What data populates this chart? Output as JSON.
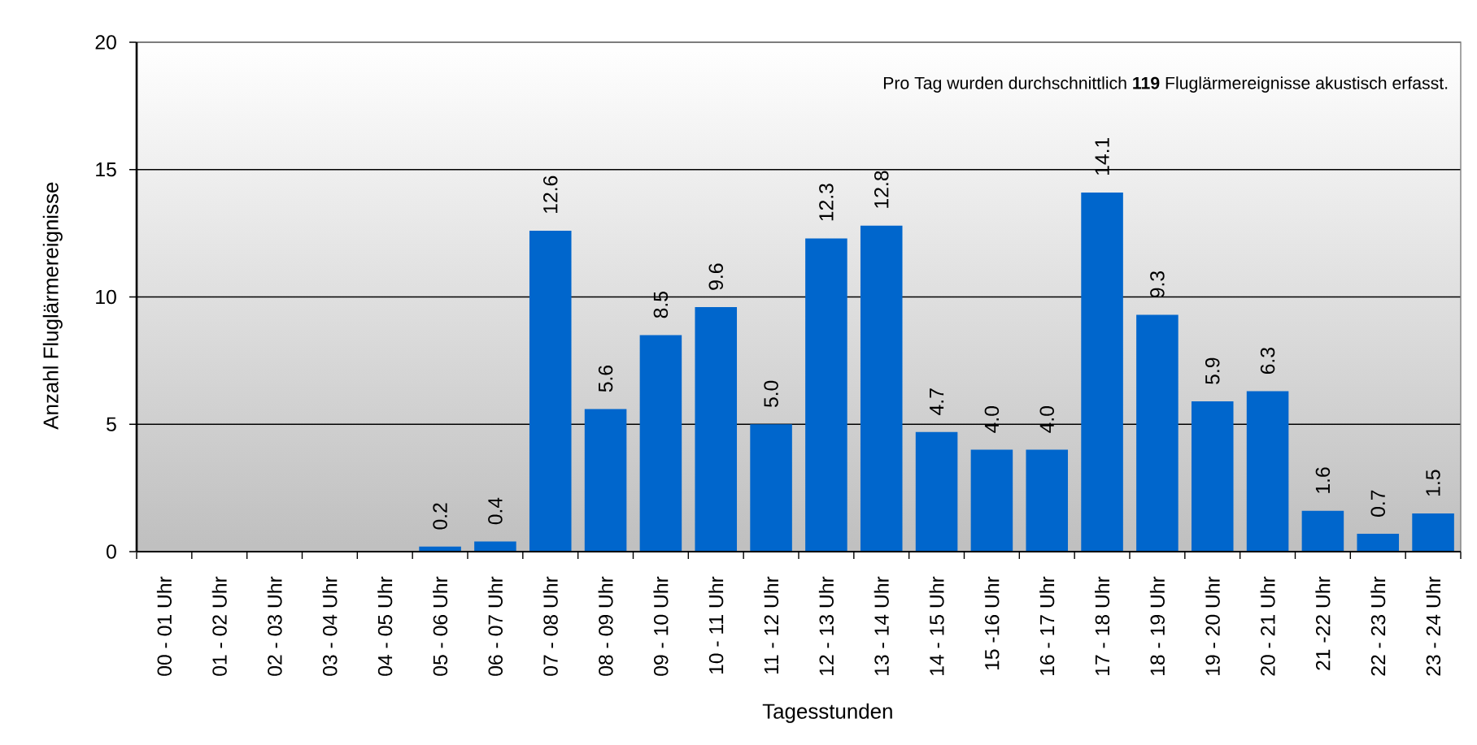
{
  "chart_data": {
    "type": "bar",
    "xlabel": "Tagesstunden",
    "ylabel": "Anzahl Fluglärmereignisse",
    "annotations": [
      "Pro Tag wurden durchschnittlich **119** Fluglärmereignisse akustisch erfasst."
    ],
    "categories": [
      "00 - 01 Uhr",
      "01 - 02 Uhr",
      "02 - 03 Uhr",
      "03 - 04 Uhr",
      "04 - 05 Uhr",
      "05 - 06 Uhr",
      "06 - 07 Uhr",
      "07 - 08 Uhr",
      "08 - 09 Uhr",
      "09 - 10 Uhr",
      "10 - 11 Uhr",
      "11 - 12 Uhr",
      "12 - 13 Uhr",
      "13 - 14 Uhr",
      "14 - 15 Uhr",
      "15 -16 Uhr",
      "16 - 17 Uhr",
      "17 - 18 Uhr",
      "18 - 19 Uhr",
      "19 - 20 Uhr",
      "20 - 21 Uhr",
      "21 -22 Uhr",
      "22 - 23 Uhr",
      "23 - 24 Uhr"
    ],
    "values": [
      0,
      0,
      0,
      0,
      0,
      0.2,
      0.4,
      12.6,
      5.6,
      8.5,
      9.6,
      5.0,
      12.3,
      12.8,
      4.7,
      4.0,
      4.0,
      14.1,
      9.3,
      5.9,
      6.3,
      1.6,
      0.7,
      1.5
    ],
    "value_labels": [
      null,
      null,
      null,
      null,
      null,
      "0.2",
      "0.4",
      "12.6",
      "5.6",
      "8.5",
      "9.6",
      "5.0",
      "12.3",
      "12.8",
      "4.7",
      "4.0",
      "4.0",
      "14.1",
      "9.3",
      "5.9",
      "6.3",
      "1.6",
      "0.7",
      "1.5"
    ],
    "color": "#0066cc",
    "ylim": [
      0,
      20
    ],
    "yticks": [
      0,
      5,
      10,
      15,
      20
    ],
    "grid": "y"
  }
}
